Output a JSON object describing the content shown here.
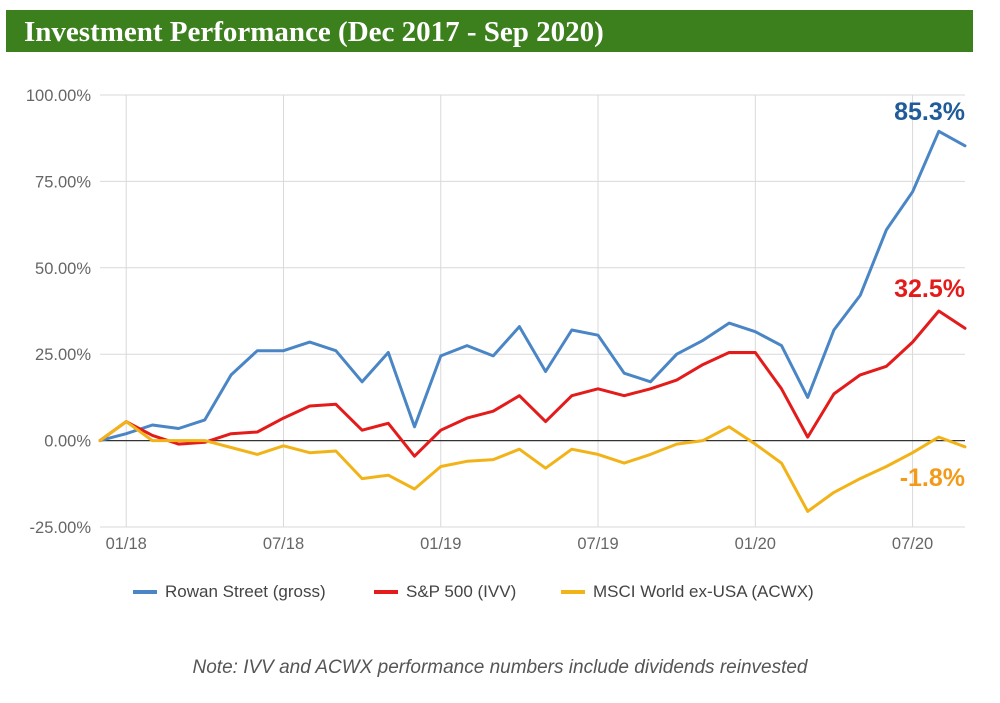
{
  "header": {
    "title": "Investment Performance (Dec 2017 - Sep 2020)"
  },
  "chart_data": {
    "type": "line",
    "title": "Investment Performance (Dec 2017 - Sep 2020)",
    "xlabel": "",
    "ylabel": "",
    "x_tick_labels": [
      "01/18",
      "07/18",
      "01/19",
      "07/19",
      "01/20",
      "07/20"
    ],
    "y_tick_labels": [
      "100.00%",
      "75.00%",
      "50.00%",
      "25.00%",
      "0.00%",
      "-25.00%"
    ],
    "y_ticks": [
      100,
      75,
      50,
      25,
      0,
      -25
    ],
    "ylim": [
      -25,
      100
    ],
    "x": [
      "Dec 2017",
      "Jan 2018",
      "Feb 2018",
      "Mar 2018",
      "Apr 2018",
      "May 2018",
      "Jun 2018",
      "Jul 2018",
      "Aug 2018",
      "Sep 2018",
      "Oct 2018",
      "Nov 2018",
      "Dec 2018",
      "Jan 2019",
      "Feb 2019",
      "Mar 2019",
      "Apr 2019",
      "May 2019",
      "Jun 2019",
      "Jul 2019",
      "Aug 2019",
      "Sep 2019",
      "Oct 2019",
      "Nov 2019",
      "Dec 2019",
      "Jan 2020",
      "Feb 2020",
      "Mar 2020",
      "Apr 2020",
      "May 2020",
      "Jun 2020",
      "Jul 2020",
      "Aug 2020",
      "Sep 2020"
    ],
    "grid": "vertical gridlines at x ticks, horizontal gridlines at y ticks",
    "zero_line": true,
    "legend_position": "bottom",
    "series": [
      {
        "name": "Rowan Street (gross)",
        "color": "#4a86c5",
        "values": [
          0,
          2,
          4.5,
          3.5,
          6,
          19,
          26,
          26,
          28.5,
          26,
          17,
          25.5,
          4,
          24.5,
          27.5,
          24.5,
          33,
          20,
          32,
          30.5,
          19.5,
          17,
          25,
          29,
          34,
          31.5,
          27.5,
          12.5,
          32,
          42,
          61,
          72,
          89.5,
          85.3
        ],
        "end_label": "85.3%",
        "end_label_color": "#1f5c99"
      },
      {
        "name": "S&P 500 (IVV)",
        "color": "#e31b1b",
        "values": [
          0,
          5.5,
          1.5,
          -1,
          -0.5,
          2,
          2.5,
          6.5,
          10,
          10.5,
          3,
          5,
          -4.5,
          3,
          6.5,
          8.5,
          13,
          5.5,
          13,
          15,
          13,
          15,
          17.5,
          22,
          25.5,
          25.5,
          15,
          1,
          13.5,
          19,
          21.5,
          28.5,
          37.5,
          32.5
        ],
        "end_label": "32.5%",
        "end_label_color": "#e31b1b"
      },
      {
        "name": "MSCI World ex-USA (ACWX)",
        "color": "#f2b318",
        "values": [
          0,
          5.5,
          0,
          0,
          0,
          -2,
          -4,
          -1.5,
          -3.5,
          -3,
          -11,
          -10,
          -14,
          -7.5,
          -6,
          -5.5,
          -2.5,
          -8,
          -2.5,
          -4,
          -6.5,
          -4,
          -1,
          0,
          4,
          -1,
          -6.5,
          -20.5,
          -15,
          -11,
          -7.5,
          -3.5,
          1,
          -1.8
        ],
        "end_label": "-1.8%",
        "end_label_color": "#f39a1a"
      }
    ]
  },
  "legend": {
    "items": [
      {
        "label": "Rowan Street (gross)",
        "color": "#4a86c5"
      },
      {
        "label": "S&P 500 (IVV)",
        "color": "#e31b1b"
      },
      {
        "label": "MSCI World ex-USA (ACWX)",
        "color": "#f2b318"
      }
    ]
  },
  "note": "Note:  IVV and ACWX performance numbers include dividends reinvested"
}
